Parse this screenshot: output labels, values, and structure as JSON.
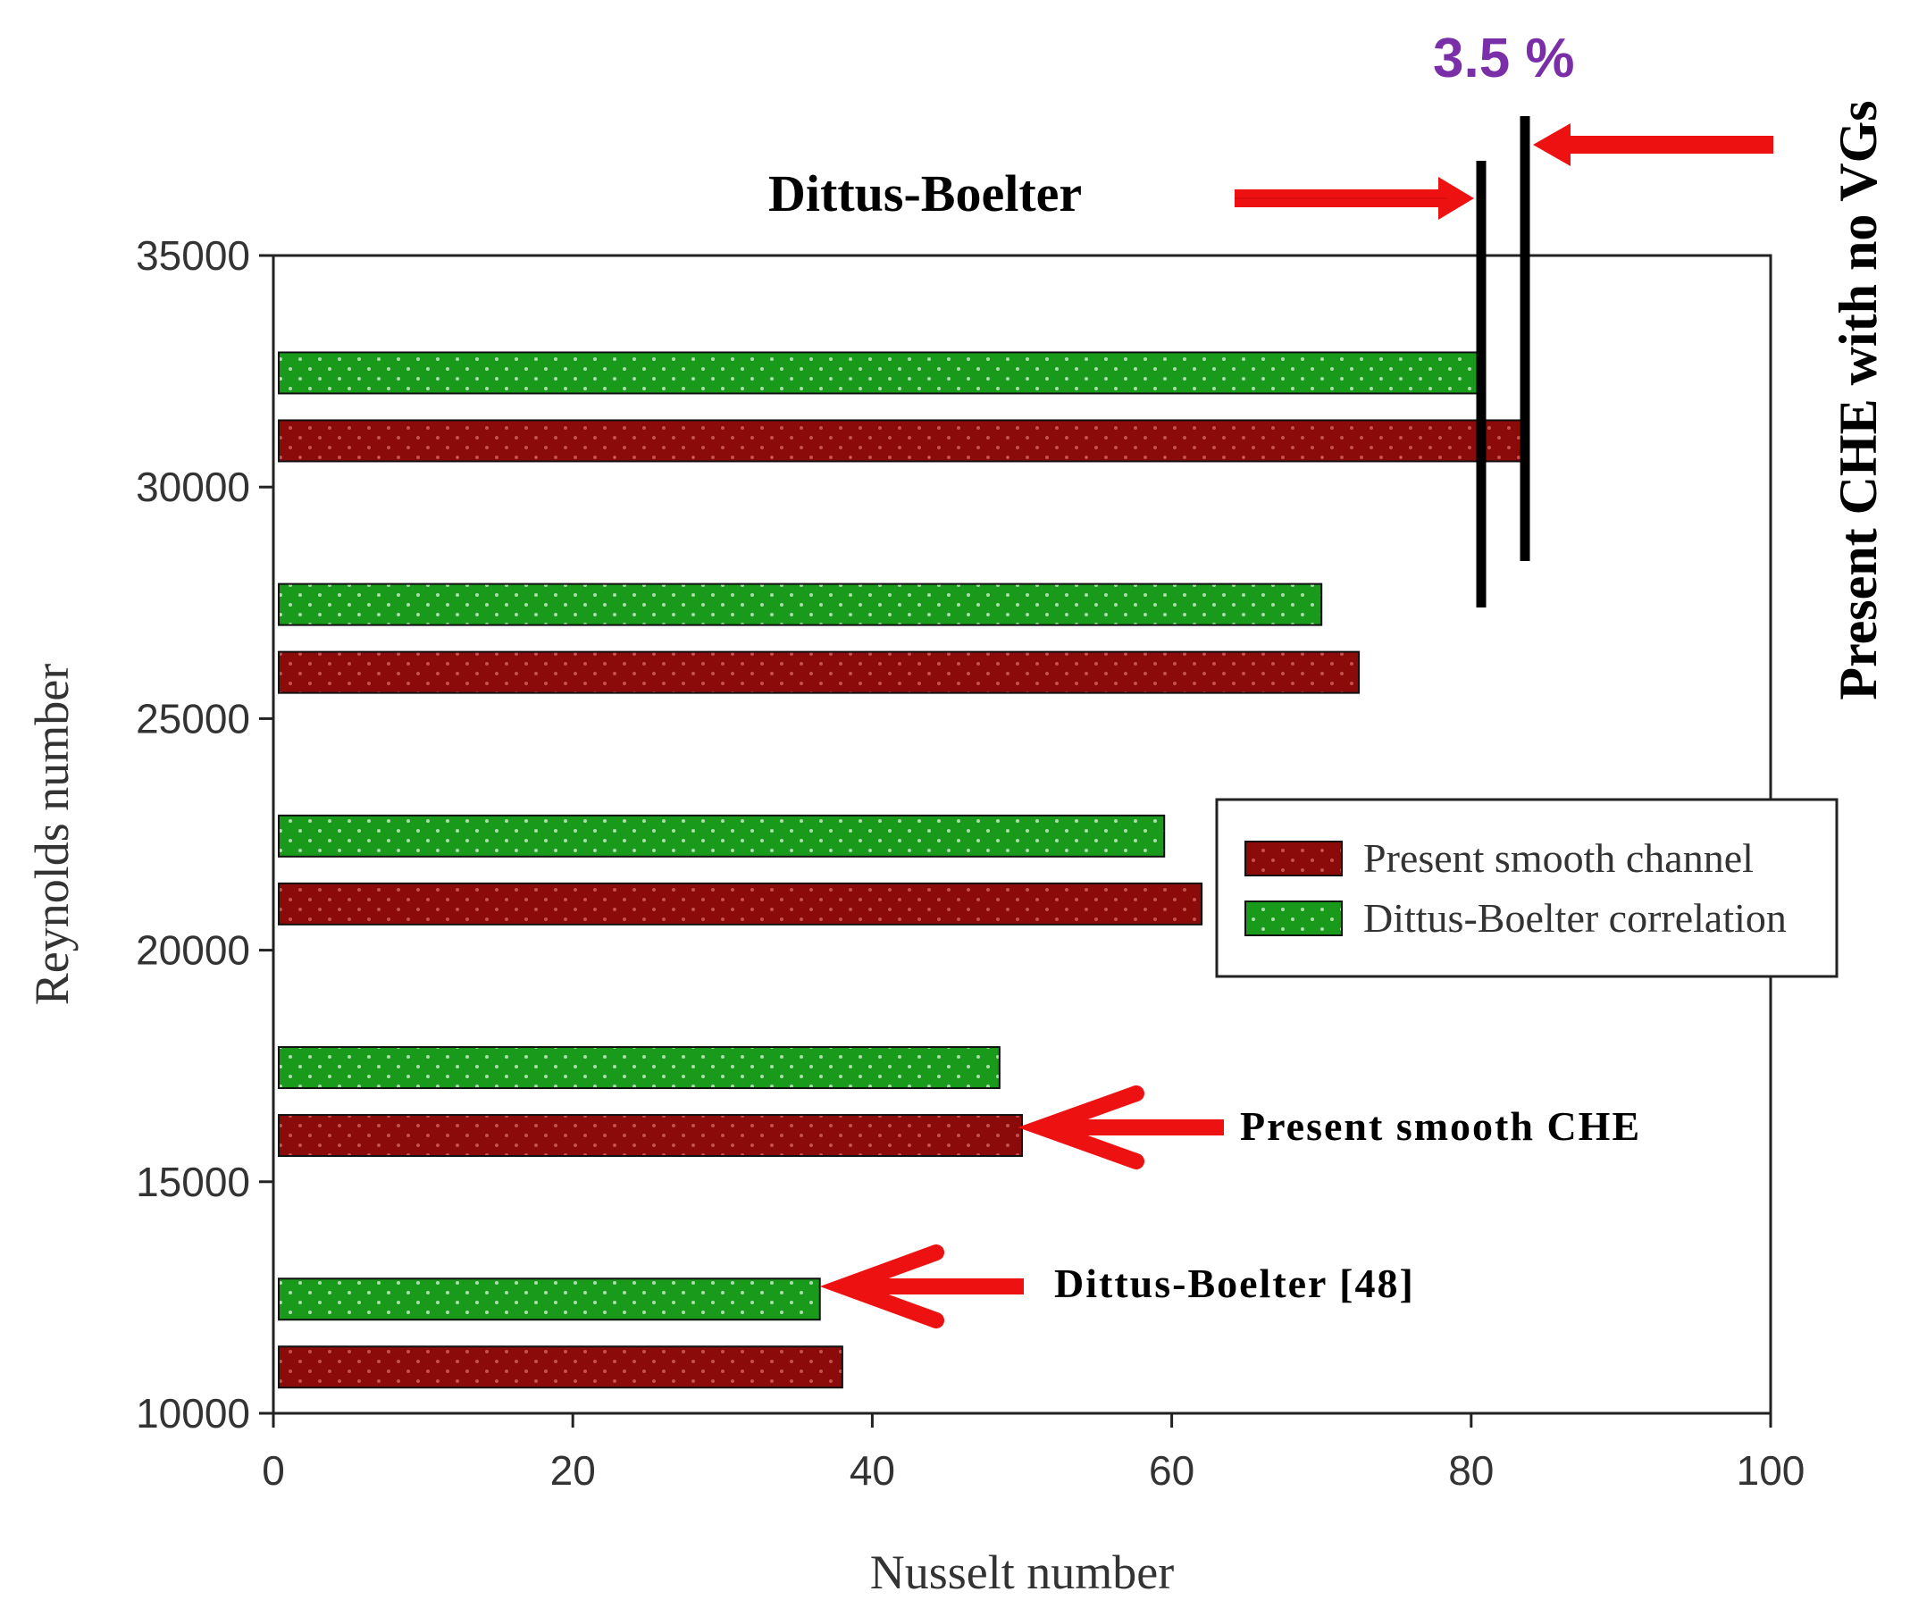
{
  "chart_data": {
    "type": "bar",
    "orientation": "horizontal",
    "xlabel": "Nusselt number",
    "ylabel": "Reynolds number",
    "xlim": [
      0,
      100
    ],
    "ylim": [
      10000,
      35000
    ],
    "x_ticks": [
      "0",
      "20",
      "40",
      "60",
      "80",
      "100"
    ],
    "y_ticks": [
      "10000",
      "15000",
      "20000",
      "25000",
      "30000",
      "35000"
    ],
    "categories": [
      11500,
      16500,
      21500,
      26500,
      31500
    ],
    "series": [
      {
        "name": "Present smooth channel",
        "color": "#8b0a0a",
        "values": [
          38,
          50,
          62,
          72.5,
          83.5
        ]
      },
      {
        "name": "Dittus-Boelter correlation",
        "color": "#1a9a1a",
        "values": [
          36.5,
          48.5,
          59.5,
          70,
          80.5
        ]
      }
    ],
    "legend_placement": "center-right",
    "grid": false,
    "annotations": {
      "db_top_label": "Dittus-Boelter",
      "percent_label": "3.5 %",
      "vertical_label": "Present CHE with no VGs",
      "smooth_label": "Present smooth CHE",
      "db48_label": "Dittus-Boelter [48]"
    }
  },
  "colors": {
    "arrow": "#ee1111",
    "percent": "#7a2fa8"
  }
}
